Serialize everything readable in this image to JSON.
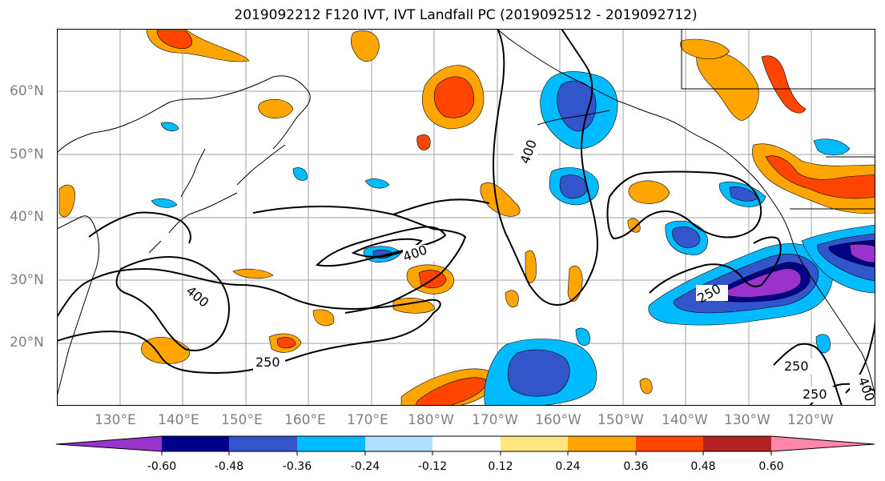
{
  "title": "2019092212 F120 IVT, IVT Landfall PC (2019092512 - 2019092712)",
  "longitude_labels": [
    "130°E",
    "140°E",
    "150°E",
    "160°E",
    "170°E",
    "180°W",
    "170°W",
    "160°W",
    "150°W",
    "140°W",
    "130°W",
    "120°W"
  ],
  "latitude_labels": [
    "20°N",
    "30°N",
    "40°N",
    "50°N",
    "60°N"
  ],
  "contour_labels": [
    "400",
    "400",
    "400",
    "250",
    "250",
    "250",
    "400",
    "250"
  ],
  "colorbar": {
    "colors": [
      "#9933cc",
      "#000088",
      "#3355cc",
      "#00bbff",
      "#b0e0ff",
      "#ffffff",
      "#ffe680",
      "#ffa500",
      "#ff4500",
      "#b22222",
      "#ff88aa"
    ],
    "tick_labels": [
      "-0.60",
      "-0.48",
      "-0.36",
      "-0.24",
      "-0.12",
      "0.12",
      "0.24",
      "0.36",
      "0.48",
      "0.60"
    ]
  },
  "colors": {
    "grid": "#a0a0a0",
    "axis_label": "#808080",
    "contour": "#000000",
    "coast": "#000000"
  }
}
